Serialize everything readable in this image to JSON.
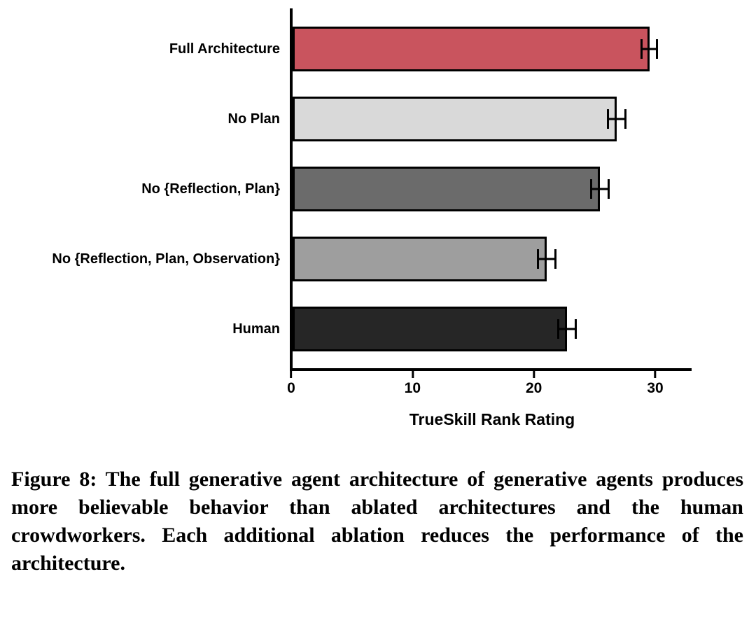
{
  "chart_data": {
    "type": "bar",
    "orientation": "horizontal",
    "title": "",
    "xlabel": "TrueSkill Rank Rating",
    "ylabel": "",
    "categories": [
      "Full Architecture",
      "No Plan",
      "No {Reflection, Plan}",
      "No {Reflection, Plan, Observation}",
      "Human"
    ],
    "values": [
      29.5,
      26.8,
      25.4,
      21.0,
      22.7
    ],
    "errors": [
      0.7,
      0.8,
      0.8,
      0.8,
      0.8
    ],
    "bar_colors": [
      "#c9545e",
      "#d9d9d9",
      "#6b6b6b",
      "#9e9e9e",
      "#262626"
    ],
    "x_ticks": [
      0,
      10,
      20,
      30
    ],
    "xlim": [
      0,
      33
    ],
    "grid": false,
    "legend": "none",
    "bar_border_color": "#000000",
    "error_bar_color": "#000000"
  },
  "caption": "Figure 8: The full generative agent architecture of generative agents produces more believable behavior than ablated architectures and the human crowdworkers. Each additional ablation reduces the performance of the architecture."
}
